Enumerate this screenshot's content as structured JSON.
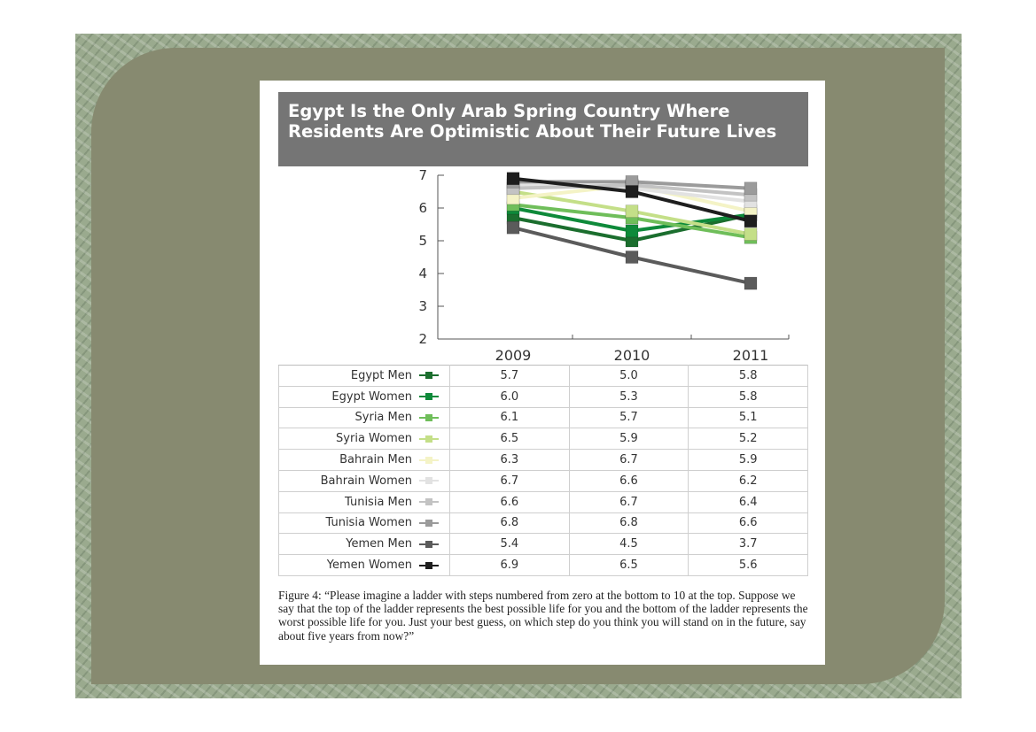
{
  "colors": {
    "background_outer": "#9aaa8e",
    "panel": "#878a70",
    "title_bar": "#757575"
  },
  "title": "Egypt Is the Only Arab Spring Country Where Residents Are Optimistic About Their Future Lives",
  "caption": "Figure 4: “Please imagine a ladder with steps numbered from zero at the bottom to 10 at the top. Suppose we say that the top of the ladder represents the best possible life for you and the bottom of the ladder represents the worst possible life for you. Just your best guess, on which step do you think you will stand on in the future, say about five years from now?”",
  "chart_data": {
    "type": "line",
    "title": "Egypt Is the Only Arab Spring Country Where Residents Are Optimistic About Their Future Lives",
    "xlabel": "",
    "ylabel": "",
    "categories": [
      "2009",
      "2010",
      "2011"
    ],
    "ylim": [
      2,
      7
    ],
    "yticks": [
      2,
      3,
      4,
      5,
      6,
      7
    ],
    "grid": false,
    "legend": "table-rows",
    "series": [
      {
        "name": "Egypt Men",
        "values": [
          5.7,
          5.0,
          5.8
        ],
        "color": "#1b6e2e"
      },
      {
        "name": "Egypt Women",
        "values": [
          6.0,
          5.3,
          5.8
        ],
        "color": "#0e8a3a"
      },
      {
        "name": "Syria Men",
        "values": [
          6.1,
          5.7,
          5.1
        ],
        "color": "#6fbe5a"
      },
      {
        "name": "Syria Women",
        "values": [
          6.5,
          5.9,
          5.2
        ],
        "color": "#c4df88"
      },
      {
        "name": "Bahrain Men",
        "values": [
          6.3,
          6.7,
          5.9
        ],
        "color": "#f4f3c6"
      },
      {
        "name": "Bahrain Women",
        "values": [
          6.7,
          6.6,
          6.2
        ],
        "color": "#e2e2e2"
      },
      {
        "name": "Tunisia Men",
        "values": [
          6.6,
          6.7,
          6.4
        ],
        "color": "#c3c3c3"
      },
      {
        "name": "Tunisia Women",
        "values": [
          6.8,
          6.8,
          6.6
        ],
        "color": "#9b9b9b"
      },
      {
        "name": "Yemen Men",
        "values": [
          5.4,
          4.5,
          3.7
        ],
        "color": "#5b5b5b"
      },
      {
        "name": "Yemen Women",
        "values": [
          6.9,
          6.5,
          5.6
        ],
        "color": "#1e1e1e"
      }
    ]
  }
}
